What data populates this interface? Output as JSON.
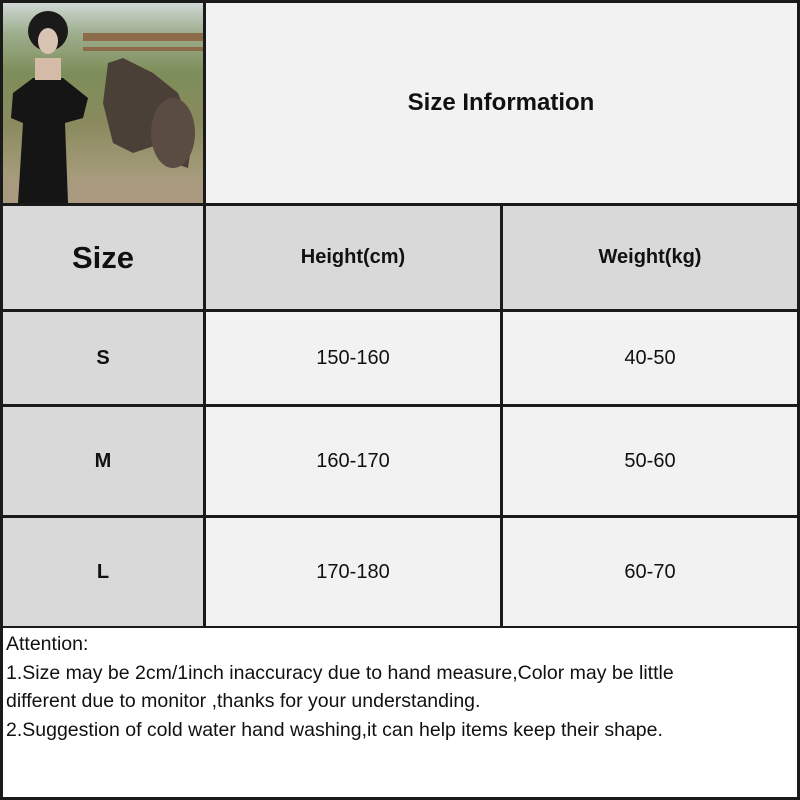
{
  "title": "Size Information",
  "table": {
    "headers": [
      "Size",
      "Height(cm)",
      "Weight(kg)"
    ],
    "rows": [
      {
        "size": "S",
        "height": "150-160",
        "weight": "40-50"
      },
      {
        "size": "M",
        "height": "160-170",
        "weight": "50-60"
      },
      {
        "size": "L",
        "height": "170-180",
        "weight": "60-70"
      }
    ]
  },
  "notes": {
    "heading": "Attention:",
    "line1a": "1.Size may be 2cm/1inch inaccuracy due to hand measure,Color may be little",
    "line1b": "different due to monitor ,thanks for your understanding.",
    "line2": "2.Suggestion of cold water hand washing,it can help items keep their shape."
  },
  "colors": {
    "header_bg": "#d9d9d9",
    "cell_bg": "#f2f2f2",
    "border": "#1a1a1a"
  }
}
